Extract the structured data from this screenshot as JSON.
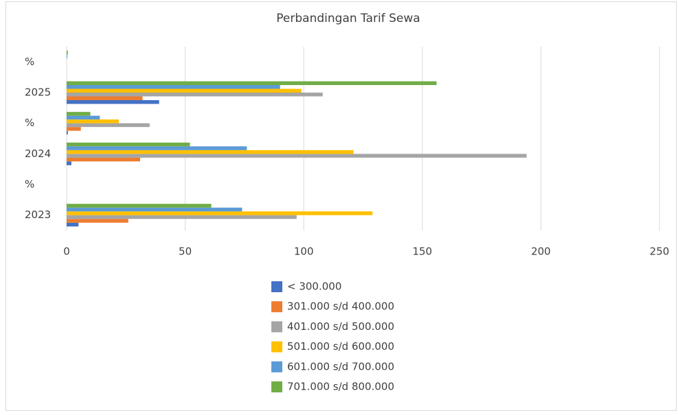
{
  "chart_data": {
    "type": "hbar",
    "title": "Perbandingan Tarif Sewa",
    "categories": [
      "2023",
      "%",
      "2024",
      "%",
      "2025",
      "%"
    ],
    "series": [
      {
        "name": "< 300.000",
        "color": "#4472c4",
        "values": [
          5,
          0,
          2,
          0.5,
          39,
          0
        ]
      },
      {
        "name": "301.000 s/d 400.000",
        "color": "#ed7d31",
        "values": [
          26,
          0,
          31,
          6,
          32,
          0
        ]
      },
      {
        "name": "401.000 s/d 500.000",
        "color": "#a5a5a5",
        "values": [
          97,
          0,
          194,
          35,
          108,
          0
        ]
      },
      {
        "name": "501.000 s/d 600.000",
        "color": "#ffc000",
        "values": [
          129,
          0,
          121,
          22,
          99,
          0
        ]
      },
      {
        "name": "601.000 s/d 700.000",
        "color": "#5b9bd5",
        "values": [
          74,
          0,
          76,
          14,
          90,
          0.3
        ]
      },
      {
        "name": "701.000 s/d 800.000",
        "color": "#70ad47",
        "values": [
          61,
          0,
          52,
          10,
          156,
          0.5
        ]
      }
    ],
    "xlim": [
      0,
      250
    ],
    "xticks": [
      0,
      50,
      100,
      150,
      200,
      250
    ],
    "grid": true,
    "legend": "bottom"
  }
}
